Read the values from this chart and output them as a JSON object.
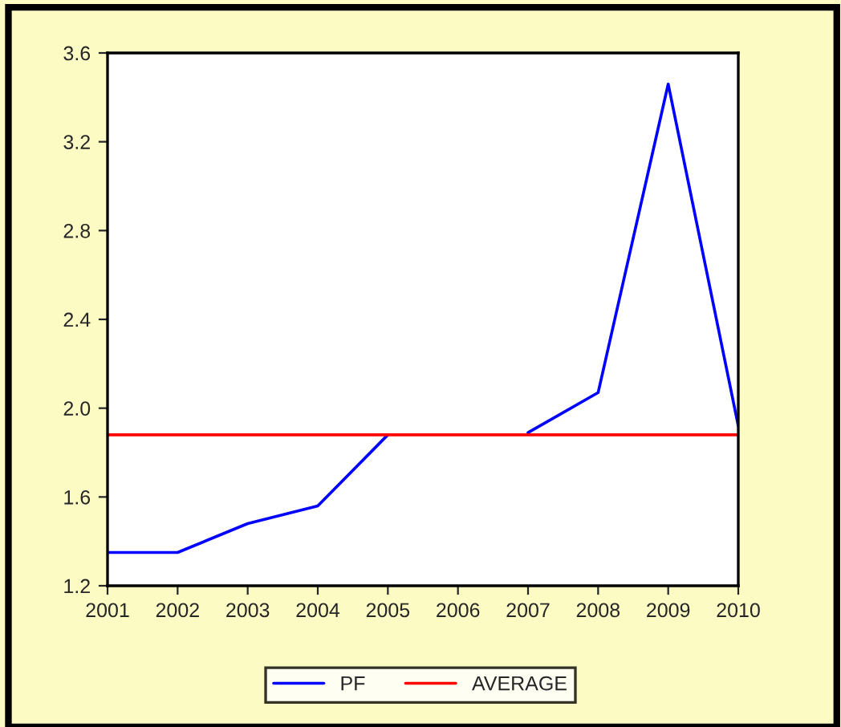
{
  "chart_data": {
    "type": "line",
    "categories": [
      "2001",
      "2002",
      "2003",
      "2004",
      "2005",
      "2006",
      "2007",
      "2008",
      "2009",
      "2010"
    ],
    "series": [
      {
        "name": "PF",
        "color": "#0000ff",
        "values": [
          1.35,
          1.35,
          1.48,
          1.56,
          1.88,
          null,
          1.89,
          2.07,
          3.46,
          1.92
        ]
      },
      {
        "name": "AVERAGE",
        "color": "#ff0000",
        "values": [
          1.88,
          1.88,
          1.88,
          1.88,
          1.88,
          1.88,
          1.88,
          1.88,
          1.88,
          1.88
        ]
      }
    ],
    "ylim": [
      1.2,
      3.6
    ],
    "yticks": [
      1.2,
      1.6,
      {
        "value": 2.0,
        "label": "2.0"
      },
      2.4,
      2.8,
      3.2,
      3.6
    ],
    "grid": false,
    "legend": "bottom",
    "marker": "none",
    "line_style": "solid"
  }
}
